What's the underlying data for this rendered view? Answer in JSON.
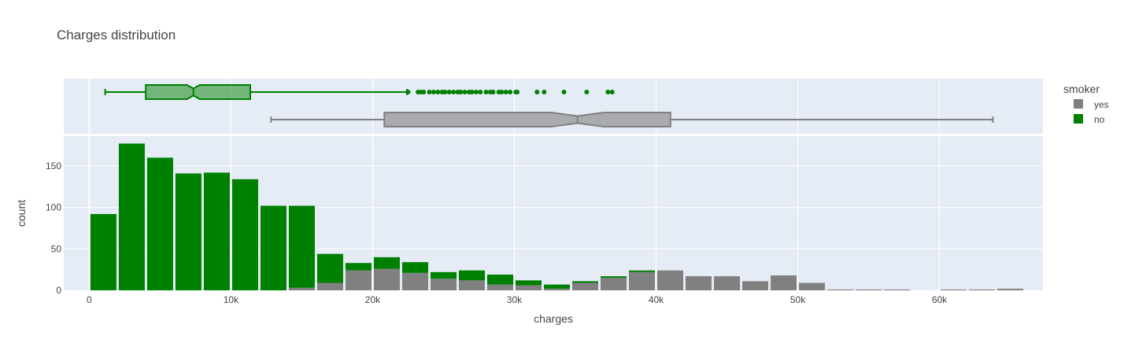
{
  "chart_data": {
    "type": "bar",
    "title": "Charges distribution",
    "xlabel": "charges",
    "ylabel": "count",
    "xlim": [
      -1800,
      67300
    ],
    "ylim": [
      0,
      186
    ],
    "x_ticks": [
      0,
      10000,
      20000,
      30000,
      40000,
      50000,
      60000
    ],
    "x_tick_labels": [
      "0",
      "10k",
      "20k",
      "30k",
      "40k",
      "50k",
      "60k"
    ],
    "y_ticks": [
      0,
      50,
      100,
      150
    ],
    "y_tick_labels": [
      "0",
      "50",
      "100",
      "150"
    ],
    "barmode": "stack",
    "bin_start": 0,
    "bin_size": 2000,
    "legend": {
      "title": "smoker",
      "placement": "right"
    },
    "series": [
      {
        "name": "yes",
        "color": "#808080",
        "values": [
          0,
          0,
          0,
          0,
          0,
          0,
          0,
          3,
          9,
          24,
          26,
          21,
          14,
          12,
          7,
          6,
          2,
          9,
          15,
          22,
          24,
          17,
          17,
          11,
          18,
          9,
          1,
          1,
          1,
          0,
          1,
          1,
          2
        ]
      },
      {
        "name": "no",
        "color": "#008000",
        "values": [
          92,
          177,
          160,
          141,
          142,
          134,
          102,
          99,
          35,
          9,
          14,
          13,
          8,
          12,
          12,
          6,
          5,
          2,
          2,
          2,
          0,
          0,
          0,
          0,
          0,
          0,
          0,
          0,
          0,
          0,
          0,
          0,
          0
        ]
      }
    ],
    "box_plots": [
      {
        "name": "no",
        "color": "#008000",
        "min": 1122,
        "q1": 3986,
        "median": 7345,
        "q3": 11363,
        "upper_fence": 22413,
        "notch_low": 6900,
        "notch_high": 7800,
        "outliers": [
          22500,
          23200,
          23400,
          23600,
          24000,
          24300,
          24600,
          24900,
          25100,
          25400,
          25700,
          26000,
          26200,
          26500,
          26800,
          27000,
          27300,
          27600,
          28000,
          28300,
          28500,
          28900,
          29100,
          29400,
          29700,
          30100,
          30200,
          31600,
          32100,
          33500,
          35100,
          36600,
          36900
        ]
      },
      {
        "name": "yes",
        "color": "#808080",
        "min": 12829,
        "q1": 20826,
        "median": 34456,
        "q3": 41019,
        "upper_fence": 63770,
        "notch_low": 32600,
        "notch_high": 36300
      }
    ]
  }
}
